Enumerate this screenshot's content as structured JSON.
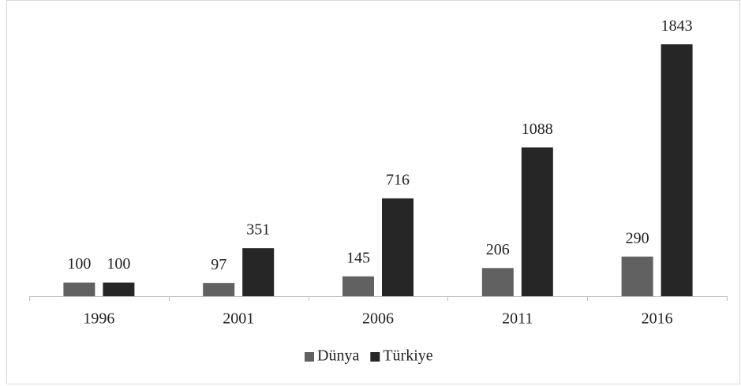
{
  "chart_data": {
    "type": "bar",
    "categories": [
      "1996",
      "2001",
      "2006",
      "2011",
      "2016"
    ],
    "series": [
      {
        "name": "Dünya",
        "color": "#616161",
        "values": [
          100,
          97,
          145,
          206,
          290
        ]
      },
      {
        "name": "Türkiye",
        "color": "#262626",
        "values": [
          100,
          351,
          716,
          1088,
          1843
        ]
      }
    ],
    "ylim": [
      0,
      2000
    ],
    "legend": "bottom"
  }
}
